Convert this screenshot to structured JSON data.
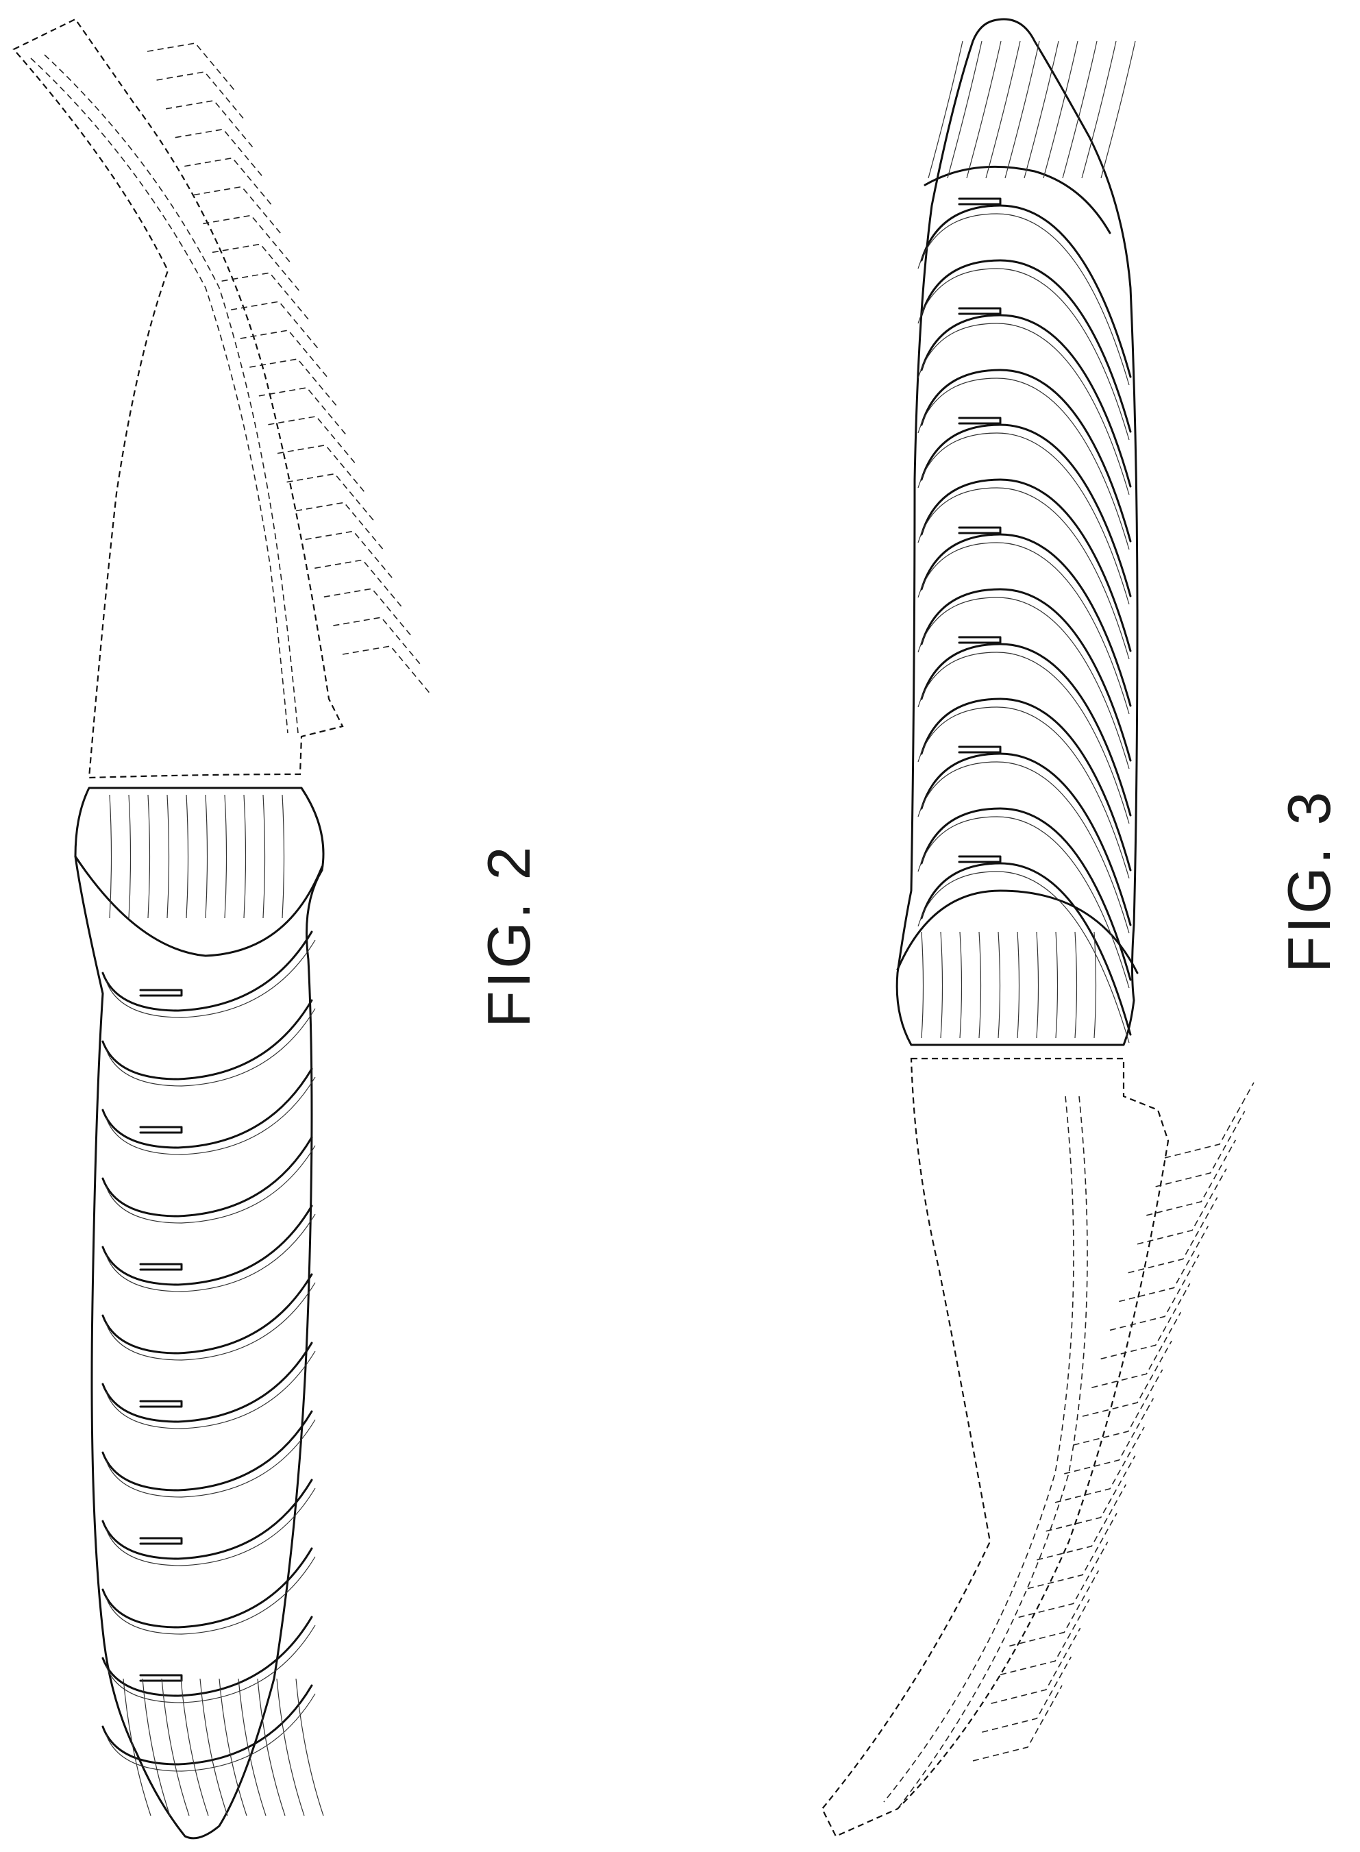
{
  "figures": [
    {
      "label": "FIG. 2"
    },
    {
      "label": "FIG. 3"
    }
  ]
}
